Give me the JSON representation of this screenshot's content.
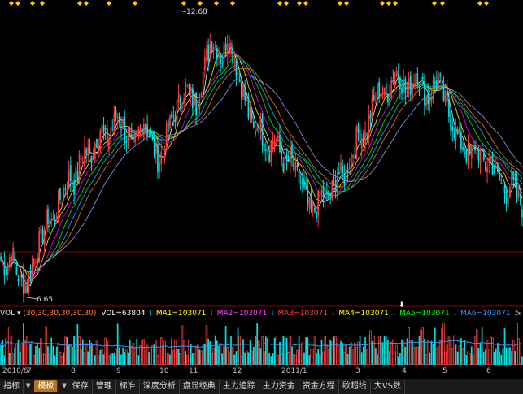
{
  "colors": {
    "up": "#ff3a3a",
    "down": "#00e0e0",
    "ma_colors": [
      "#ffffff",
      "#ffff00",
      "#ff00ff",
      "#00ff00",
      "#00c0ff",
      "#ff8000",
      "#a0a0ff"
    ],
    "vol_ma": "#2f9bff",
    "grid": "#8b0000"
  },
  "price_annotations": {
    "high": "12.68",
    "low": "6.65"
  },
  "volume_bar": {
    "label": "VOL",
    "params": "(30,30,30,30,30,30)",
    "vol": "VOL=63804",
    "ma1": "MA1=103071",
    "ma2": "MA2=103071",
    "ma3": "MA3=103071",
    "ma4": "MA4=103071",
    "ma5": "MA5=103071",
    "ma6": "MA6=103071"
  },
  "time_axis": [
    {
      "label": "2010/6",
      "pos": 3
    },
    {
      "label": "7",
      "pos": 33
    },
    {
      "label": "8",
      "pos": 87
    },
    {
      "label": "9",
      "pos": 143
    },
    {
      "label": "10",
      "pos": 196
    },
    {
      "label": "11",
      "pos": 232
    },
    {
      "label": "12",
      "pos": 286
    },
    {
      "label": "2011/1",
      "pos": 346
    },
    {
      "label": "3",
      "pos": 437
    },
    {
      "label": "4",
      "pos": 494
    },
    {
      "label": "5",
      "pos": 544
    },
    {
      "label": "6",
      "pos": 598
    }
  ],
  "toolbar": {
    "items": [
      "指标",
      "模板",
      "保存",
      "管理",
      "标准",
      "深度分析",
      "盘显经典",
      "主力追踪",
      "主力资金",
      "资金方程",
      "歇超线",
      "大VS数"
    ]
  },
  "chart_data": {
    "type": "candlestick",
    "price_range": [
      6.3,
      12.9
    ],
    "high": 12.68,
    "low": 6.65,
    "closes": [
      7.3,
      7.1,
      7.5,
      7.0,
      6.8,
      6.7,
      7.2,
      7.6,
      7.9,
      8.3,
      8.1,
      8.6,
      8.9,
      9.2,
      9.0,
      9.5,
      9.8,
      9.6,
      10.0,
      10.3,
      9.9,
      10.2,
      10.6,
      10.4,
      10.0,
      9.7,
      10.1,
      10.5,
      10.2,
      9.8,
      9.5,
      9.9,
      10.3,
      10.6,
      10.9,
      11.2,
      11.0,
      10.7,
      11.3,
      11.8,
      12.3,
      12.1,
      11.8,
      12.4,
      12.0,
      11.5,
      11.1,
      10.6,
      10.2,
      10.4,
      10.0,
      9.8,
      10.1,
      9.7,
      9.4,
      9.6,
      9.2,
      9.0,
      8.6,
      8.3,
      8.5,
      8.8,
      8.6,
      8.9,
      9.3,
      9.1,
      9.5,
      9.8,
      10.2,
      10.0,
      10.5,
      10.9,
      11.2,
      10.9,
      11.3,
      11.6,
      11.4,
      11.0,
      11.3,
      11.6,
      11.2,
      10.9,
      11.2,
      11.4,
      11.0,
      10.6,
      10.3,
      10.0,
      9.8,
      9.6,
      9.9,
      9.7,
      9.4,
      9.6,
      9.2,
      9.0,
      8.8,
      9.1,
      8.7,
      8.5
    ]
  }
}
